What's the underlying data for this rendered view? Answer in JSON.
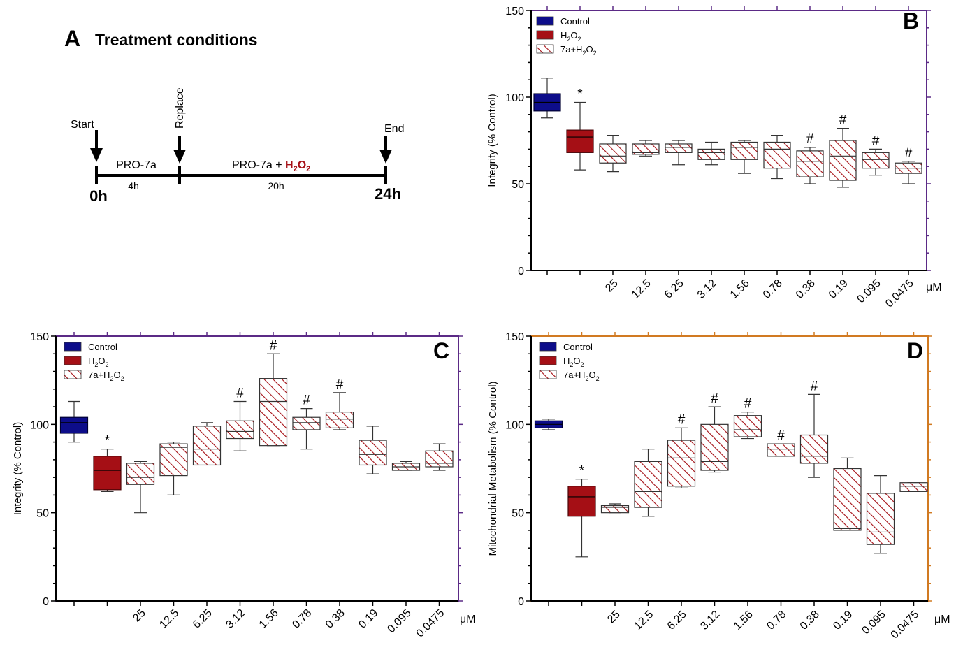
{
  "timeline": {
    "letter": "A",
    "title": "Treatment conditions",
    "start_label": "Start",
    "replace_label": "Replace",
    "end_label": "End",
    "seg1_label": "PRO-7a",
    "seg1_duration": "4h",
    "seg2_label_prefix": "PRO-7a + ",
    "seg2_label_chem": "H",
    "seg2_label_sub": "2",
    "seg2_label_chem2": "O",
    "seg2_label_sub2": "2",
    "seg2_duration": "20h",
    "t0": "0h",
    "t_end": "24h",
    "accent": "#a50f15"
  },
  "colors": {
    "control": "#0d0d8a",
    "h2o2": "#a50f15",
    "hatch": "#a50f15",
    "frame_bc": "#5b2a86",
    "frame_d": "#d17a22"
  },
  "chart_data": [
    {
      "panel": "B",
      "type": "boxplot",
      "ylabel": "Integrity (% Control)",
      "ylim": [
        0,
        150
      ],
      "yticks": [
        0,
        50,
        100,
        150
      ],
      "unit": "μM",
      "categories": [
        "",
        "",
        "25",
        "12.5",
        "6.25",
        "3.12",
        "1.56",
        "0.78",
        "0.38",
        "0.19",
        "0.095",
        "0.0475"
      ],
      "legend": [
        {
          "label": "Control",
          "style": "control"
        },
        {
          "label": "H",
          "sub": "2",
          "label2": "O",
          "sub2": "2",
          "style": "h2o2"
        },
        {
          "label": "7a+H",
          "sub": "2",
          "label2": "O",
          "sub2": "2",
          "style": "hatch"
        }
      ],
      "boxes": [
        {
          "style": "control",
          "min": 88,
          "q1": 92,
          "median": 97,
          "q3": 102,
          "max": 111,
          "sig": ""
        },
        {
          "style": "h2o2",
          "min": 58,
          "q1": 68,
          "median": 77,
          "q3": 81,
          "max": 97,
          "sig": "*"
        },
        {
          "style": "hatch",
          "min": 57,
          "q1": 62,
          "median": 66,
          "q3": 73,
          "max": 78,
          "sig": ""
        },
        {
          "style": "hatch",
          "min": 66,
          "q1": 67,
          "median": 68,
          "q3": 73,
          "max": 75,
          "sig": ""
        },
        {
          "style": "hatch",
          "min": 61,
          "q1": 68,
          "median": 71,
          "q3": 73,
          "max": 75,
          "sig": ""
        },
        {
          "style": "hatch",
          "min": 61,
          "q1": 64,
          "median": 68,
          "q3": 70,
          "max": 74,
          "sig": ""
        },
        {
          "style": "hatch",
          "min": 56,
          "q1": 64,
          "median": 71,
          "q3": 74,
          "max": 75,
          "sig": ""
        },
        {
          "style": "hatch",
          "min": 53,
          "q1": 59,
          "median": 70,
          "q3": 74,
          "max": 78,
          "sig": ""
        },
        {
          "style": "hatch",
          "min": 50,
          "q1": 54,
          "median": 63,
          "q3": 69,
          "max": 71,
          "sig": "#"
        },
        {
          "style": "hatch",
          "min": 48,
          "q1": 52,
          "median": 66,
          "q3": 75,
          "max": 82,
          "sig": "#"
        },
        {
          "style": "hatch",
          "min": 55,
          "q1": 59,
          "median": 64,
          "q3": 68,
          "max": 70,
          "sig": "#"
        },
        {
          "style": "hatch",
          "min": 50,
          "q1": 56,
          "median": 59,
          "q3": 62,
          "max": 63,
          "sig": "#"
        }
      ]
    },
    {
      "panel": "C",
      "type": "boxplot",
      "ylabel": "Integrity (% Control)",
      "ylim": [
        0,
        150
      ],
      "yticks": [
        0,
        50,
        100,
        150
      ],
      "unit": "μM",
      "categories": [
        "",
        "",
        "25",
        "12.5",
        "6.25",
        "3.12",
        "1.56",
        "0.78",
        "0.38",
        "0.19",
        "0.095",
        "0.0475"
      ],
      "legend": [
        {
          "label": "Control",
          "style": "control"
        },
        {
          "label": "H",
          "sub": "2",
          "label2": "O",
          "sub2": "2",
          "style": "h2o2"
        },
        {
          "label": "7a+H",
          "sub": "2",
          "label2": "O",
          "sub2": "2",
          "style": "hatch"
        }
      ],
      "boxes": [
        {
          "style": "control",
          "min": 90,
          "q1": 95,
          "median": 101,
          "q3": 104,
          "max": 113,
          "sig": ""
        },
        {
          "style": "h2o2",
          "min": 62,
          "q1": 63,
          "median": 74,
          "q3": 82,
          "max": 86,
          "sig": "*"
        },
        {
          "style": "hatch",
          "min": 50,
          "q1": 66,
          "median": 70,
          "q3": 78,
          "max": 79,
          "sig": ""
        },
        {
          "style": "hatch",
          "min": 60,
          "q1": 71,
          "median": 87,
          "q3": 89,
          "max": 90,
          "sig": ""
        },
        {
          "style": "hatch",
          "min": 77,
          "q1": 77,
          "median": 86,
          "q3": 99,
          "max": 101,
          "sig": ""
        },
        {
          "style": "hatch",
          "min": 85,
          "q1": 92,
          "median": 96,
          "q3": 102,
          "max": 113,
          "sig": "#"
        },
        {
          "style": "hatch",
          "min": 88,
          "q1": 88,
          "median": 113,
          "q3": 126,
          "max": 140,
          "sig": "#"
        },
        {
          "style": "hatch",
          "min": 86,
          "q1": 97,
          "median": 101,
          "q3": 104,
          "max": 109,
          "sig": "#"
        },
        {
          "style": "hatch",
          "min": 97,
          "q1": 98,
          "median": 103,
          "q3": 107,
          "max": 118,
          "sig": "#"
        },
        {
          "style": "hatch",
          "min": 72,
          "q1": 77,
          "median": 83,
          "q3": 91,
          "max": 99,
          "sig": ""
        },
        {
          "style": "hatch",
          "min": 74,
          "q1": 74,
          "median": 76,
          "q3": 78,
          "max": 79,
          "sig": ""
        },
        {
          "style": "hatch",
          "min": 74,
          "q1": 76,
          "median": 78,
          "q3": 85,
          "max": 89,
          "sig": ""
        }
      ]
    },
    {
      "panel": "D",
      "type": "boxplot",
      "ylabel": "Mitochondrial Metabolism (% Control)",
      "ylim": [
        0,
        150
      ],
      "yticks": [
        0,
        50,
        100,
        150
      ],
      "unit": "μM",
      "categories": [
        "",
        "",
        "25",
        "12.5",
        "6.25",
        "3.12",
        "1.56",
        "0.78",
        "0.38",
        "0.19",
        "0.095",
        "0.0475"
      ],
      "legend": [
        {
          "label": "Control",
          "style": "control"
        },
        {
          "label": "H",
          "sub": "2",
          "label2": "O",
          "sub2": "2",
          "style": "h2o2"
        },
        {
          "label": "7a+H",
          "sub": "2",
          "label2": "O",
          "sub2": "2",
          "style": "hatch"
        }
      ],
      "boxes": [
        {
          "style": "control",
          "min": 97,
          "q1": 98,
          "median": 100,
          "q3": 102,
          "max": 103,
          "sig": ""
        },
        {
          "style": "h2o2",
          "min": 25,
          "q1": 48,
          "median": 59,
          "q3": 65,
          "max": 69,
          "sig": "*"
        },
        {
          "style": "hatch",
          "min": 50,
          "q1": 50,
          "median": 53,
          "q3": 54,
          "max": 55,
          "sig": ""
        },
        {
          "style": "hatch",
          "min": 48,
          "q1": 53,
          "median": 62,
          "q3": 79,
          "max": 86,
          "sig": ""
        },
        {
          "style": "hatch",
          "min": 64,
          "q1": 65,
          "median": 81,
          "q3": 91,
          "max": 98,
          "sig": "#"
        },
        {
          "style": "hatch",
          "min": 73,
          "q1": 74,
          "median": 79,
          "q3": 100,
          "max": 110,
          "sig": "#"
        },
        {
          "style": "hatch",
          "min": 92,
          "q1": 93,
          "median": 97,
          "q3": 105,
          "max": 107,
          "sig": "#"
        },
        {
          "style": "hatch",
          "min": 82,
          "q1": 82,
          "median": 86,
          "q3": 89,
          "max": 89,
          "sig": "#"
        },
        {
          "style": "hatch",
          "min": 70,
          "q1": 78,
          "median": 82,
          "q3": 94,
          "max": 117,
          "sig": "#"
        },
        {
          "style": "hatch",
          "min": 40,
          "q1": 40,
          "median": 41,
          "q3": 75,
          "max": 81,
          "sig": ""
        },
        {
          "style": "hatch",
          "min": 27,
          "q1": 32,
          "median": 39,
          "q3": 61,
          "max": 71,
          "sig": ""
        },
        {
          "style": "hatch",
          "min": 62,
          "q1": 62,
          "median": 65,
          "q3": 67,
          "max": 67,
          "sig": ""
        }
      ]
    }
  ]
}
